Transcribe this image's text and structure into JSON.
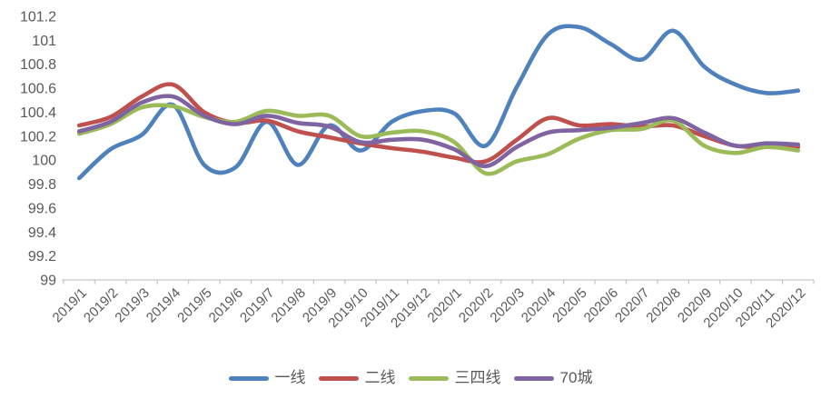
{
  "chart_data": {
    "type": "line",
    "title": "",
    "xlabel": "",
    "ylabel": "",
    "categories": [
      "2019/1",
      "2019/2",
      "2019/3",
      "2019/4",
      "2019/5",
      "2019/6",
      "2019/7",
      "2019/8",
      "2019/9",
      "2019/10",
      "2019/11",
      "2019/12",
      "2020/1",
      "2020/2",
      "2020/3",
      "2020/4",
      "2020/5",
      "2020/6",
      "2020/7",
      "2020/8",
      "2020/9",
      "2020/10",
      "2020/11",
      "2020/12"
    ],
    "series": [
      {
        "name": "一线",
        "color": "#4F81BD",
        "values": [
          99.85,
          100.09,
          100.21,
          100.46,
          99.96,
          99.94,
          100.32,
          99.96,
          100.29,
          100.08,
          100.32,
          100.41,
          100.39,
          100.12,
          100.61,
          101.05,
          101.11,
          100.97,
          100.84,
          101.08,
          100.78,
          100.63,
          100.56,
          100.58
        ]
      },
      {
        "name": "二线",
        "color": "#C0504D",
        "values": [
          100.29,
          100.36,
          100.53,
          100.63,
          100.4,
          100.31,
          100.33,
          100.24,
          100.19,
          100.14,
          100.1,
          100.07,
          100.02,
          99.99,
          100.17,
          100.35,
          100.29,
          100.3,
          100.28,
          100.29,
          100.2,
          100.12,
          100.11,
          100.11
        ]
      },
      {
        "name": "三四线",
        "color": "#9BBB59",
        "values": [
          100.22,
          100.3,
          100.44,
          100.45,
          100.36,
          100.32,
          100.41,
          100.37,
          100.37,
          100.2,
          100.23,
          100.24,
          100.15,
          99.89,
          99.99,
          100.05,
          100.18,
          100.25,
          100.26,
          100.33,
          100.12,
          100.06,
          100.11,
          100.08
        ]
      },
      {
        "name": "70城",
        "color": "#8064A2",
        "values": [
          100.24,
          100.32,
          100.48,
          100.53,
          100.37,
          100.3,
          100.37,
          100.31,
          100.28,
          100.15,
          100.17,
          100.17,
          100.09,
          99.95,
          100.11,
          100.23,
          100.25,
          100.27,
          100.31,
          100.35,
          100.23,
          100.12,
          100.14,
          100.13
        ]
      }
    ],
    "ylim": [
      99,
      101.2
    ],
    "ytick_step": 0.2,
    "ytick_labels": [
      "101.2",
      "101",
      "100.8",
      "100.6",
      "100.4",
      "100.2",
      "100",
      "99.8",
      "99.6",
      "99.4",
      "99.2",
      "99"
    ],
    "grid": false,
    "smooth_lines": true,
    "legend_position": "bottom",
    "axis_color": "#C6C6C6",
    "tick_label_color": "#595959",
    "x_labels_rotation_deg": -45
  }
}
